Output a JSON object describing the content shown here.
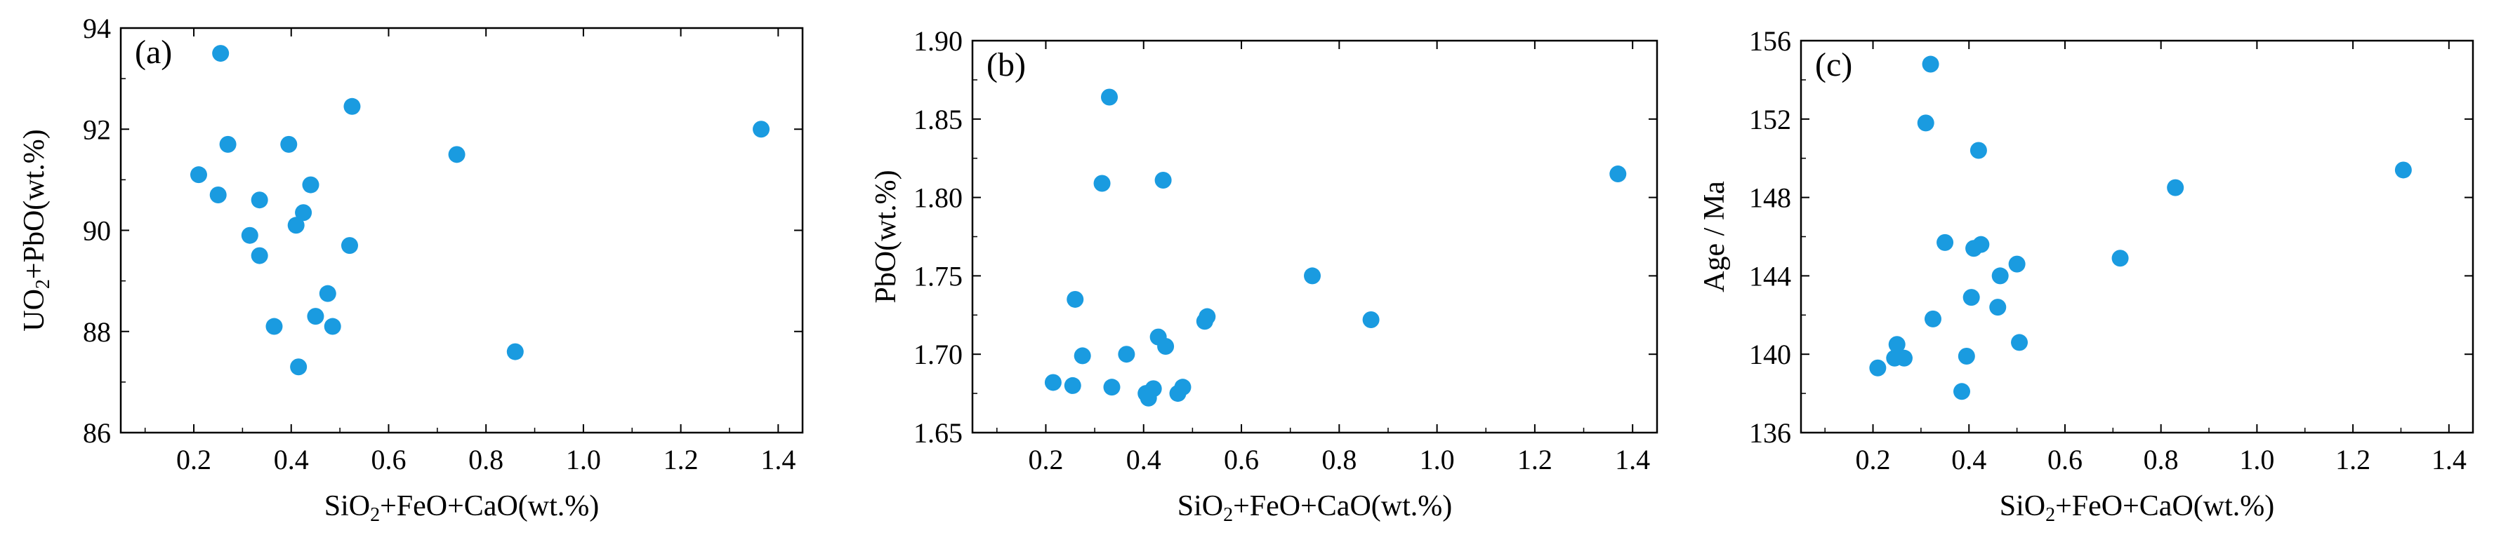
{
  "chart_data": [
    {
      "type": "scatter",
      "panel_label": "(a)",
      "xlabel": "SiO2+FeO+CaO(wt.%)",
      "xlabel_parts": {
        "a": "SiO",
        "sub1": "2",
        "b": "+FeO+CaO(wt.%)"
      },
      "ylabel": "UO2+PbO(wt.%)",
      "ylabel_parts": {
        "a": "UO",
        "sub1": "2",
        "b": "+PbO(wt.%)"
      },
      "xlim": [
        0.05,
        1.45
      ],
      "ylim": [
        86,
        94
      ],
      "xticks": [
        0.2,
        0.4,
        0.6,
        0.8,
        1.0,
        1.2,
        1.4
      ],
      "xtick_labels": [
        "0.2",
        "0.4",
        "0.6",
        "0.8",
        "1.0",
        "1.2",
        "1.4"
      ],
      "yticks": [
        86,
        88,
        90,
        92,
        94
      ],
      "ytick_labels": [
        "86",
        "88",
        "90",
        "92",
        "94"
      ],
      "point_color": "#1a9be0",
      "points": [
        {
          "x": 0.255,
          "y": 93.5
        },
        {
          "x": 0.21,
          "y": 91.1
        },
        {
          "x": 0.25,
          "y": 90.7
        },
        {
          "x": 0.27,
          "y": 91.7
        },
        {
          "x": 0.315,
          "y": 89.9
        },
        {
          "x": 0.335,
          "y": 90.6
        },
        {
          "x": 0.335,
          "y": 89.5
        },
        {
          "x": 0.365,
          "y": 88.1
        },
        {
          "x": 0.395,
          "y": 91.7
        },
        {
          "x": 0.41,
          "y": 90.1
        },
        {
          "x": 0.425,
          "y": 90.35
        },
        {
          "x": 0.44,
          "y": 90.9
        },
        {
          "x": 0.415,
          "y": 87.3
        },
        {
          "x": 0.45,
          "y": 88.3
        },
        {
          "x": 0.475,
          "y": 88.75
        },
        {
          "x": 0.485,
          "y": 88.1
        },
        {
          "x": 0.52,
          "y": 89.7
        },
        {
          "x": 0.525,
          "y": 92.45
        },
        {
          "x": 0.74,
          "y": 91.5
        },
        {
          "x": 0.86,
          "y": 87.6
        },
        {
          "x": 1.365,
          "y": 92.0
        }
      ]
    },
    {
      "type": "scatter",
      "panel_label": "(b)",
      "xlabel": "SiO2+FeO+CaO(wt.%)",
      "xlabel_parts": {
        "a": "SiO",
        "sub1": "2",
        "b": "+FeO+CaO(wt.%)"
      },
      "ylabel": "PbO(wt.%)",
      "ylabel_parts": {
        "a": "PbO(wt.%)",
        "sub1": "",
        "b": ""
      },
      "xlim": [
        0.05,
        1.45
      ],
      "ylim": [
        1.65,
        1.9
      ],
      "xticks": [
        0.2,
        0.4,
        0.6,
        0.8,
        1.0,
        1.2,
        1.4
      ],
      "xtick_labels": [
        "0.2",
        "0.4",
        "0.6",
        "0.8",
        "1.0",
        "1.2",
        "1.4"
      ],
      "yticks": [
        1.65,
        1.7,
        1.75,
        1.8,
        1.85,
        1.9
      ],
      "ytick_labels": [
        "1.65",
        "1.70",
        "1.75",
        "1.80",
        "1.85",
        "1.90"
      ],
      "point_color": "#1a9be0",
      "points": [
        {
          "x": 0.215,
          "y": 1.682
        },
        {
          "x": 0.255,
          "y": 1.68
        },
        {
          "x": 0.26,
          "y": 1.735
        },
        {
          "x": 0.275,
          "y": 1.699
        },
        {
          "x": 0.315,
          "y": 1.809
        },
        {
          "x": 0.33,
          "y": 1.864
        },
        {
          "x": 0.335,
          "y": 1.679
        },
        {
          "x": 0.365,
          "y": 1.7
        },
        {
          "x": 0.405,
          "y": 1.675
        },
        {
          "x": 0.41,
          "y": 1.672
        },
        {
          "x": 0.42,
          "y": 1.678
        },
        {
          "x": 0.43,
          "y": 1.711
        },
        {
          "x": 0.44,
          "y": 1.811
        },
        {
          "x": 0.445,
          "y": 1.705
        },
        {
          "x": 0.47,
          "y": 1.675
        },
        {
          "x": 0.48,
          "y": 1.679
        },
        {
          "x": 0.525,
          "y": 1.721
        },
        {
          "x": 0.53,
          "y": 1.724
        },
        {
          "x": 0.745,
          "y": 1.75
        },
        {
          "x": 0.865,
          "y": 1.722
        },
        {
          "x": 1.37,
          "y": 1.815
        }
      ]
    },
    {
      "type": "scatter",
      "panel_label": "(c)",
      "xlabel": "SiO2+FeO+CaO(wt.%)",
      "xlabel_parts": {
        "a": "SiO",
        "sub1": "2",
        "b": "+FeO+CaO(wt.%)"
      },
      "ylabel": "Age / Ma",
      "ylabel_parts": {
        "a": "Age / Ma",
        "sub1": "",
        "b": ""
      },
      "xlim": [
        0.05,
        1.45
      ],
      "ylim": [
        136,
        156
      ],
      "xticks": [
        0.2,
        0.4,
        0.6,
        0.8,
        1.0,
        1.2,
        1.4
      ],
      "xtick_labels": [
        "0.2",
        "0.4",
        "0.6",
        "0.8",
        "1.0",
        "1.2",
        "1.4"
      ],
      "yticks": [
        136,
        140,
        144,
        148,
        152,
        156
      ],
      "ytick_labels": [
        "136",
        "140",
        "144",
        "148",
        "152",
        "156"
      ],
      "point_color": "#1a9be0",
      "points": [
        {
          "x": 0.21,
          "y": 139.3
        },
        {
          "x": 0.245,
          "y": 139.8
        },
        {
          "x": 0.25,
          "y": 140.5
        },
        {
          "x": 0.265,
          "y": 139.8
        },
        {
          "x": 0.31,
          "y": 151.8
        },
        {
          "x": 0.32,
          "y": 154.8
        },
        {
          "x": 0.325,
          "y": 141.8
        },
        {
          "x": 0.35,
          "y": 145.7
        },
        {
          "x": 0.385,
          "y": 138.1
        },
        {
          "x": 0.395,
          "y": 139.9
        },
        {
          "x": 0.405,
          "y": 142.9
        },
        {
          "x": 0.41,
          "y": 145.4
        },
        {
          "x": 0.42,
          "y": 150.4
        },
        {
          "x": 0.425,
          "y": 145.6
        },
        {
          "x": 0.46,
          "y": 142.4
        },
        {
          "x": 0.465,
          "y": 144.0
        },
        {
          "x": 0.5,
          "y": 144.6
        },
        {
          "x": 0.505,
          "y": 140.6
        },
        {
          "x": 0.715,
          "y": 144.9
        },
        {
          "x": 0.83,
          "y": 148.5
        },
        {
          "x": 1.305,
          "y": 149.4
        }
      ]
    }
  ]
}
